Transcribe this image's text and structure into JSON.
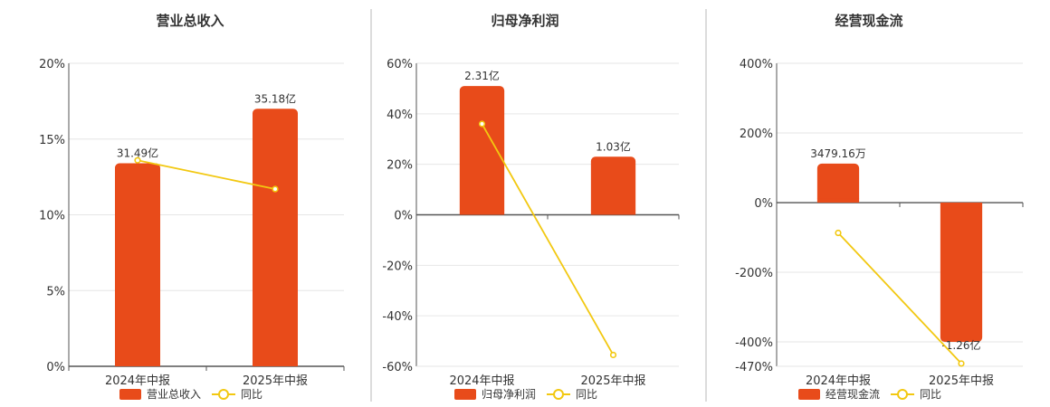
{
  "colors": {
    "bar": "#E84B1A",
    "line": "#F2C811",
    "grid": "#E6E6E6",
    "axis": "#555555",
    "divider": "#B8B8B8"
  },
  "chart_data": [
    {
      "type": "bar",
      "title": "营业总收入",
      "categories": [
        "2024年中报",
        "2025年中报"
      ],
      "bar_values": [
        13.4,
        17.0
      ],
      "bar_labels": [
        "31.49亿",
        "35.18亿"
      ],
      "line_values": [
        13.6,
        11.7
      ],
      "ylim": [
        0,
        20
      ],
      "yticks": [
        0,
        5,
        10,
        15,
        20
      ],
      "ytick_labels": [
        "0%",
        "5%",
        "10%",
        "15%",
        "20%"
      ],
      "legend": [
        "营业总收入",
        "同比"
      ]
    },
    {
      "type": "bar",
      "title": "归母净利润",
      "categories": [
        "2024年中报",
        "2025年中报"
      ],
      "bar_values": [
        51,
        23
      ],
      "bar_labels": [
        "2.31亿",
        "1.03亿"
      ],
      "line_values": [
        36,
        -55.5
      ],
      "ylim": [
        -60,
        60
      ],
      "yticks": [
        -60,
        -40,
        -20,
        0,
        20,
        40,
        60
      ],
      "ytick_labels": [
        "-60%",
        "-40%",
        "-20%",
        "0%",
        "20%",
        "40%",
        "60%"
      ],
      "legend": [
        "归母净利润",
        "同比"
      ]
    },
    {
      "type": "bar",
      "title": "经营现金流",
      "categories": [
        "2024年中报",
        "2025年中报"
      ],
      "bar_values": [
        112,
        -400
      ],
      "bar_labels": [
        "3479.16万",
        "-1.26亿"
      ],
      "line_values": [
        -87,
        -462
      ],
      "ylim": [
        -470,
        400
      ],
      "yticks": [
        -470,
        -400,
        -200,
        0,
        200,
        400
      ],
      "ytick_labels": [
        "-470%",
        "-400%",
        "-200%",
        "0%",
        "200%",
        "400%"
      ],
      "legend": [
        "经营现金流",
        "同比"
      ]
    }
  ]
}
